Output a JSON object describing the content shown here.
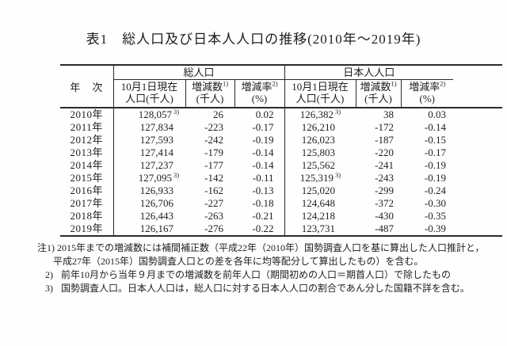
{
  "title": "表1　総人口及び日本人人口の推移(2010年～2019年)",
  "table": {
    "year_header": "年　次",
    "groups": [
      {
        "label": "総人口"
      },
      {
        "label": "日本人人口"
      }
    ],
    "sub_headers": [
      {
        "line1": "10月1日現在",
        "sup": "",
        "line2": "人口(千人)"
      },
      {
        "line1": "増減数",
        "sup": "1)",
        "line2": "(千人)"
      },
      {
        "line1": "増減率",
        "sup": "2)",
        "line2": "(%)"
      }
    ],
    "rows": [
      {
        "year": "2010年",
        "total": {
          "pop": "128,057",
          "mark": "3)",
          "change": "26",
          "rate": "0.02"
        },
        "japanese": {
          "pop": "126,382",
          "mark": "3)",
          "change": "38",
          "rate": "0.03"
        }
      },
      {
        "year": "2011年",
        "total": {
          "pop": "127,834",
          "mark": "",
          "change": "-223",
          "rate": "-0.17"
        },
        "japanese": {
          "pop": "126,210",
          "mark": "",
          "change": "-172",
          "rate": "-0.14"
        }
      },
      {
        "year": "2012年",
        "total": {
          "pop": "127,593",
          "mark": "",
          "change": "-242",
          "rate": "-0.19"
        },
        "japanese": {
          "pop": "126,023",
          "mark": "",
          "change": "-187",
          "rate": "-0.15"
        }
      },
      {
        "year": "2013年",
        "total": {
          "pop": "127,414",
          "mark": "",
          "change": "-179",
          "rate": "-0.14"
        },
        "japanese": {
          "pop": "125,803",
          "mark": "",
          "change": "-220",
          "rate": "-0.17"
        }
      },
      {
        "year": "2014年",
        "total": {
          "pop": "127,237",
          "mark": "",
          "change": "-177",
          "rate": "-0.14"
        },
        "japanese": {
          "pop": "125,562",
          "mark": "",
          "change": "-241",
          "rate": "-0.19"
        }
      },
      {
        "year": "2015年",
        "total": {
          "pop": "127,095",
          "mark": "3)",
          "change": "-142",
          "rate": "-0.11"
        },
        "japanese": {
          "pop": "125,319",
          "mark": "3)",
          "change": "-243",
          "rate": "-0.19"
        }
      },
      {
        "year": "2016年",
        "total": {
          "pop": "126,933",
          "mark": "",
          "change": "-162",
          "rate": "-0.13"
        },
        "japanese": {
          "pop": "125,020",
          "mark": "",
          "change": "-299",
          "rate": "-0.24"
        }
      },
      {
        "year": "2017年",
        "total": {
          "pop": "126,706",
          "mark": "",
          "change": "-227",
          "rate": "-0.18"
        },
        "japanese": {
          "pop": "124,648",
          "mark": "",
          "change": "-372",
          "rate": "-0.30"
        }
      },
      {
        "year": "2018年",
        "total": {
          "pop": "126,443",
          "mark": "",
          "change": "-263",
          "rate": "-0.21"
        },
        "japanese": {
          "pop": "124,218",
          "mark": "",
          "change": "-430",
          "rate": "-0.35"
        }
      },
      {
        "year": "2019年",
        "total": {
          "pop": "126,167",
          "mark": "",
          "change": "-276",
          "rate": "-0.22"
        },
        "japanese": {
          "pop": "123,731",
          "mark": "",
          "change": "-487",
          "rate": "-0.39"
        }
      }
    ]
  },
  "notes": [
    {
      "label": "注1)",
      "lines": [
        "2015年までの増減数には補間補正数（平成22年（2010年）国勢調査人口を基に算出した人口推計と，",
        "平成27年（2015年）国勢調査人口との差を各年に均等配分して算出したもの）を含む。"
      ]
    },
    {
      "label": "2)",
      "lines": [
        "前年10月から当年９月までの増減数を前年人口（期間初めの人口＝期首人口）で除したもの"
      ]
    },
    {
      "label": "3)",
      "lines": [
        "国勢調査人口。日本人人口は，総人口に対する日本人人口の割合であん分した国籍不詳を含む。"
      ]
    }
  ]
}
